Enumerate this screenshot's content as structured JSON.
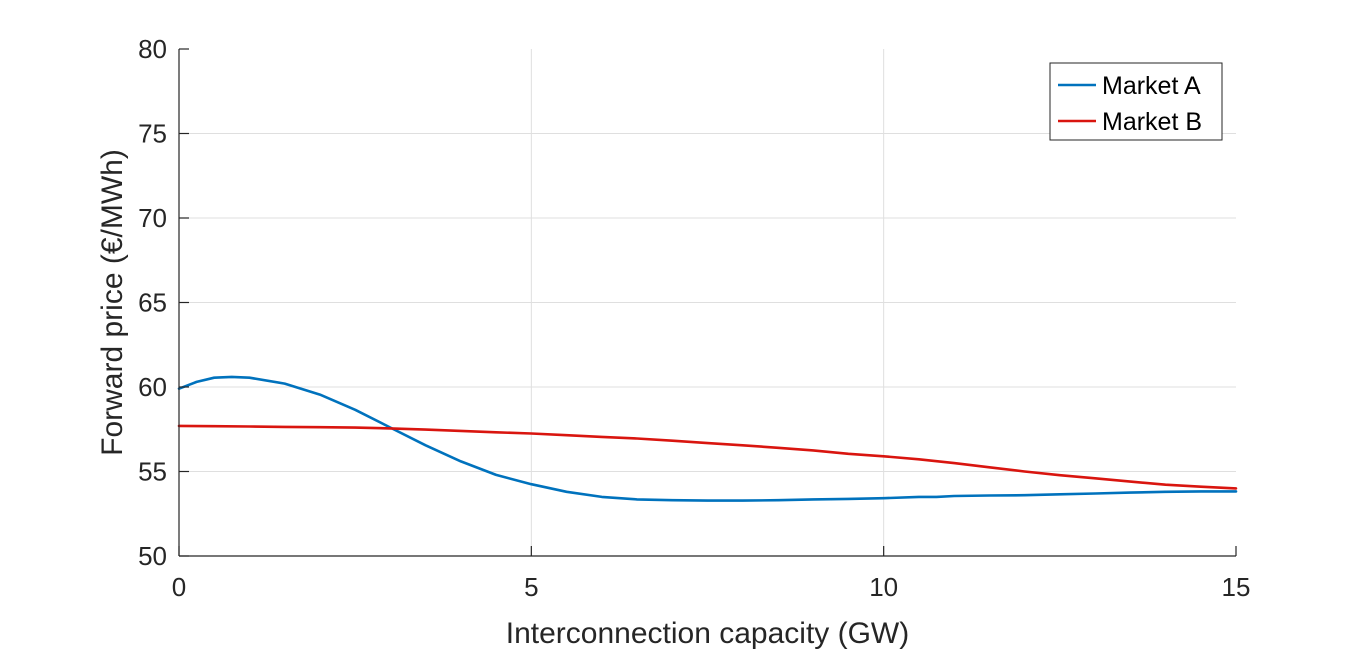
{
  "chart_data": {
    "type": "line",
    "title": "",
    "xlabel": "Interconnection capacity (GW)",
    "ylabel": "Forward price (€/MWh)",
    "xlim": [
      0,
      15
    ],
    "ylim": [
      50,
      80
    ],
    "xticks": [
      0,
      5,
      10,
      15
    ],
    "yticks": [
      50,
      55,
      60,
      65,
      70,
      75,
      80
    ],
    "grid": true,
    "legend_position": "top-right",
    "series": [
      {
        "name": "Market A",
        "color": "#0072BD",
        "x": [
          0,
          0.25,
          0.5,
          0.75,
          1.0,
          1.5,
          2.0,
          2.5,
          3.0,
          3.5,
          4.0,
          4.5,
          5.0,
          5.5,
          6.0,
          6.5,
          7.0,
          7.5,
          8.0,
          8.5,
          9.0,
          9.5,
          10.0,
          10.5,
          10.75,
          11.0,
          11.5,
          12.0,
          12.5,
          13.0,
          13.5,
          14.0,
          14.5,
          15.0
        ],
        "y": [
          59.9,
          60.3,
          60.55,
          60.6,
          60.55,
          60.2,
          59.55,
          58.65,
          57.6,
          56.55,
          55.6,
          54.8,
          54.25,
          53.8,
          53.5,
          53.35,
          53.3,
          53.28,
          53.28,
          53.3,
          53.35,
          53.38,
          53.42,
          53.5,
          53.5,
          53.55,
          53.58,
          53.6,
          53.65,
          53.7,
          53.75,
          53.8,
          53.82,
          53.82
        ]
      },
      {
        "name": "Market B",
        "color": "#D9150F",
        "x": [
          0,
          0.5,
          1.0,
          1.5,
          2.0,
          2.5,
          3.0,
          3.5,
          4.0,
          4.5,
          5.0,
          5.5,
          6.0,
          6.5,
          7.0,
          7.5,
          8.0,
          8.5,
          9.0,
          9.5,
          10.0,
          10.5,
          11.0,
          11.5,
          12.0,
          12.5,
          13.0,
          13.5,
          14.0,
          14.5,
          15.0
        ],
        "y": [
          57.7,
          57.68,
          57.66,
          57.64,
          57.62,
          57.6,
          57.55,
          57.48,
          57.4,
          57.32,
          57.25,
          57.15,
          57.05,
          56.95,
          56.82,
          56.68,
          56.55,
          56.4,
          56.25,
          56.05,
          55.9,
          55.72,
          55.5,
          55.25,
          55.0,
          54.78,
          54.6,
          54.4,
          54.22,
          54.1,
          54.0
        ]
      }
    ]
  }
}
